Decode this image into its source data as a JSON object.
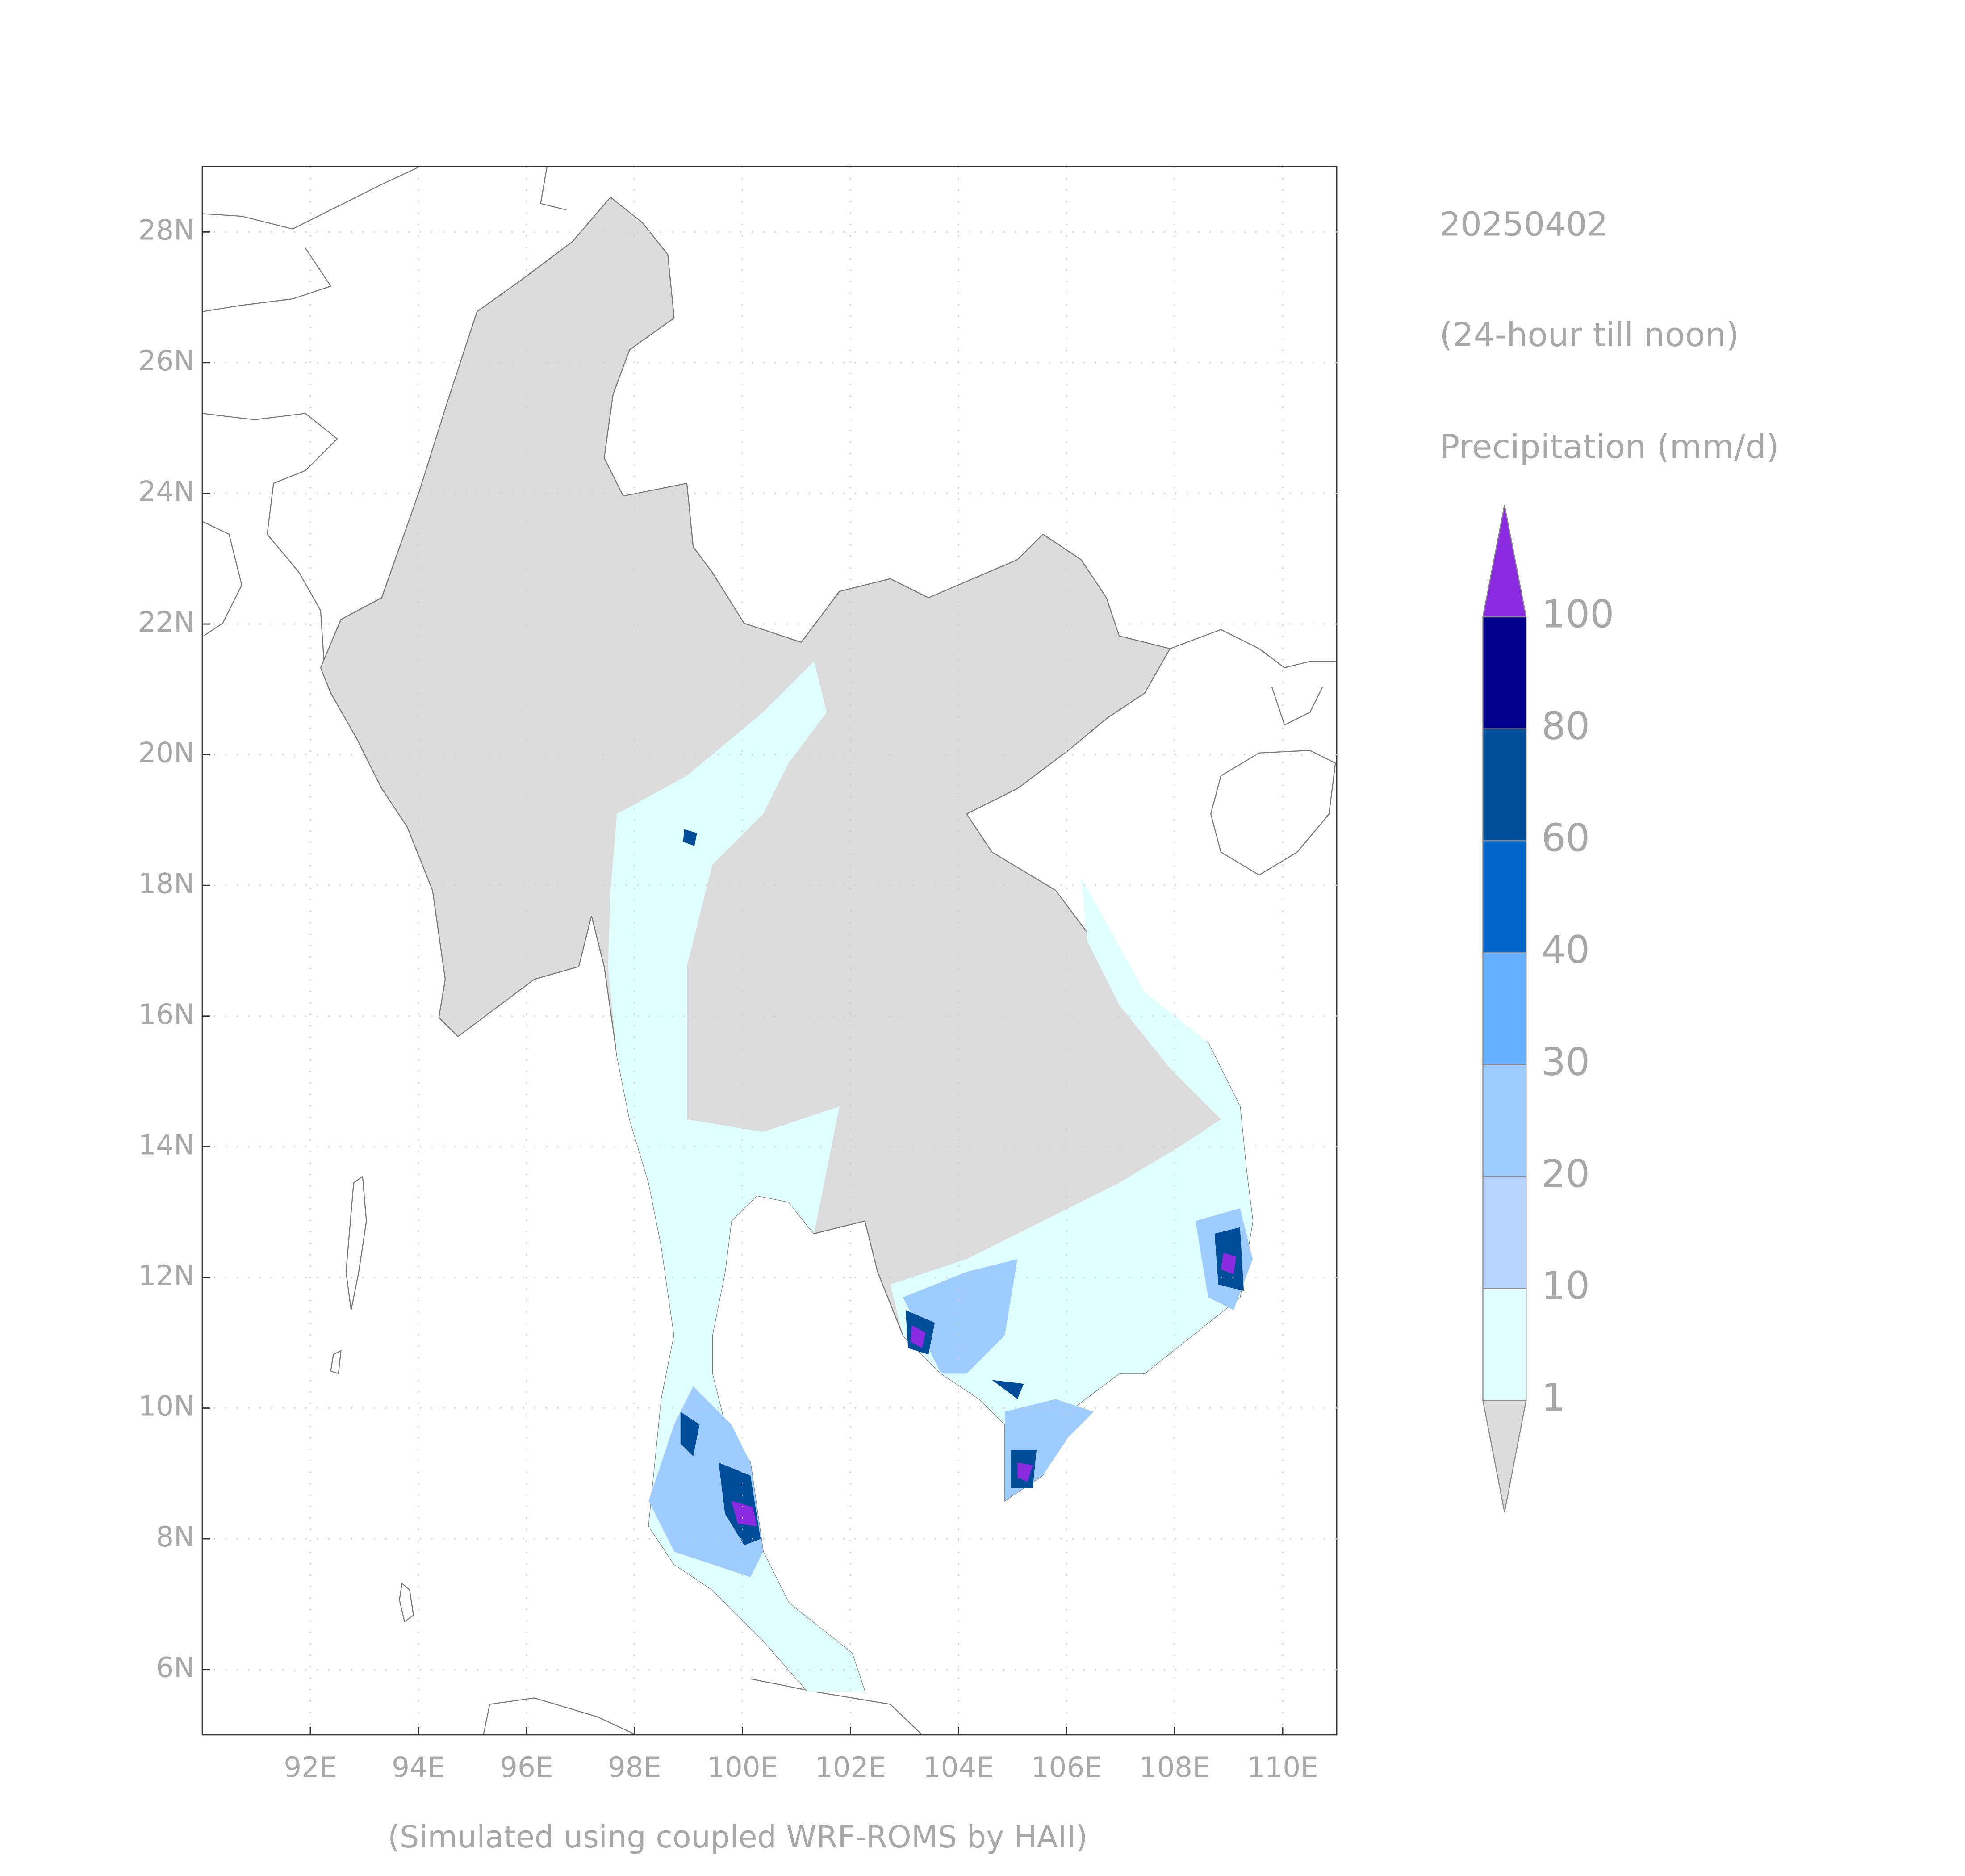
{
  "title": "20250402",
  "subtitle": "(24-hour till noon)",
  "variable": "Precipitation (mm/d)",
  "footnote": "(Simulated using coupled WRF-ROMS by HAII)",
  "map": {
    "xlim": [
      90,
      111
    ],
    "ylim": [
      5,
      29
    ],
    "xticks": [
      {
        "value": 92,
        "label": "92E"
      },
      {
        "value": 94,
        "label": "94E"
      },
      {
        "value": 96,
        "label": "96E"
      },
      {
        "value": 98,
        "label": "98E"
      },
      {
        "value": 100,
        "label": "100E"
      },
      {
        "value": 102,
        "label": "102E"
      },
      {
        "value": 104,
        "label": "104E"
      },
      {
        "value": 106,
        "label": "106E"
      },
      {
        "value": 108,
        "label": "108E"
      },
      {
        "value": 110,
        "label": "110E"
      }
    ],
    "yticks": [
      {
        "value": 6,
        "label": "6N"
      },
      {
        "value": 8,
        "label": "8N"
      },
      {
        "value": 10,
        "label": "10N"
      },
      {
        "value": 12,
        "label": "12N"
      },
      {
        "value": 14,
        "label": "14N"
      },
      {
        "value": 16,
        "label": "16N"
      },
      {
        "value": 18,
        "label": "18N"
      },
      {
        "value": 20,
        "label": "20N"
      },
      {
        "value": 22,
        "label": "22N"
      },
      {
        "value": 24,
        "label": "24N"
      },
      {
        "value": 26,
        "label": "26N"
      },
      {
        "value": 28,
        "label": "28N"
      }
    ],
    "grid": true
  },
  "colorbar": {
    "levels": [
      1,
      10,
      20,
      30,
      40,
      60,
      80,
      100
    ],
    "colors": [
      "#dcdcdc",
      "#e0ffff",
      "#b7d3ff",
      "#9fccff",
      "#66b0ff",
      "#0066cc",
      "#004d99",
      "#00008b",
      "#8a2be2"
    ]
  }
}
